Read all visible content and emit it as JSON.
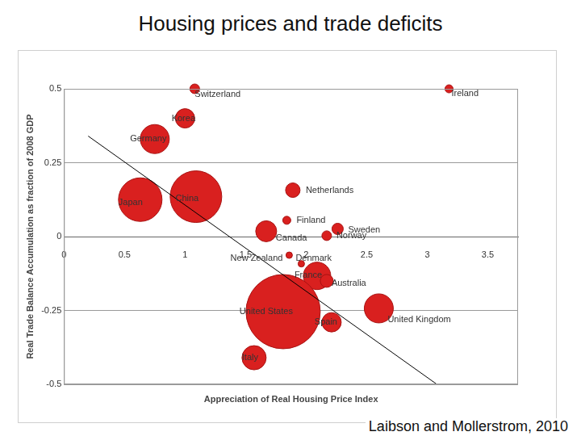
{
  "chart_data": {
    "type": "bubble",
    "title": "Housing prices and trade deficits",
    "x_label": "Appreciation of Real Housing Price Index",
    "y_label": "Real Trade Balance Accumulation as fraction of 2008 GDP",
    "annotation": "Laibson and Mollerstrom, 2010",
    "categories": [
      "Switzerland",
      "Ireland",
      "Korea",
      "Germany",
      "Japan",
      "China",
      "Netherlands",
      "Finland",
      "Canada",
      "Sweden",
      "Norway",
      "New Zealand",
      "Denmark",
      "France",
      "Australia",
      "United States",
      "Spain",
      "United Kingdom",
      "Italy"
    ],
    "x": [
      1.08,
      3.18,
      1.0,
      0.75,
      0.63,
      1.09,
      1.89,
      1.84,
      1.67,
      2.26,
      2.17,
      1.86,
      1.96,
      2.09,
      2.17,
      1.81,
      2.21,
      2.6,
      1.57
    ],
    "values": [
      0.5,
      0.5,
      0.4,
      0.33,
      0.125,
      0.135,
      0.157,
      0.055,
      0.018,
      0.026,
      0.003,
      -0.063,
      -0.092,
      -0.133,
      -0.15,
      -0.254,
      -0.29,
      -0.243,
      -0.41
    ],
    "sizes": [
      6,
      5,
      12,
      18,
      27,
      32,
      9,
      5,
      13,
      7,
      6,
      4,
      4,
      17,
      8,
      46,
      12,
      18,
      15
    ],
    "trend_line": {
      "x": [
        0.2,
        3.08
      ],
      "values": [
        0.34,
        -0.5
      ]
    },
    "color": "#d9201f",
    "xlim": [
      0,
      3.75
    ],
    "xticks": [
      0,
      0.5,
      1,
      1.5,
      2,
      2.5,
      3,
      3.5
    ],
    "ylim": [
      -0.5,
      0.5
    ],
    "yticks": [
      -0.5,
      -0.25,
      0,
      0.25,
      0.5
    ],
    "grid": true
  }
}
